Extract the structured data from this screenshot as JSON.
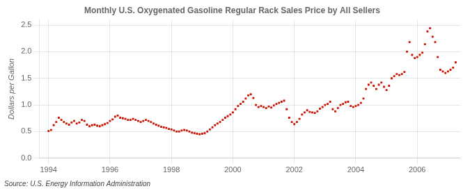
{
  "chart_data": {
    "type": "scatter",
    "title": "Monthly U.S. Oxygenated Gasoline Regular Rack Sales Price by All Sellers",
    "ylabel": "Dollars per Gallon",
    "annotations": [
      "Source: U.S. Energy Information Administration"
    ],
    "color": "#cc1100",
    "marker": "square",
    "grid": true,
    "xlim": [
      1993.7,
      2007.4
    ],
    "xticks": [
      1994,
      1996,
      1998,
      2000,
      2002,
      2004,
      2006
    ],
    "ylim": [
      0.0,
      2.6
    ],
    "yticks": [
      {
        "value": 0.0,
        "label": "0.0"
      },
      0.5,
      {
        "value": 1.0,
        "label": "1.0"
      },
      1.5,
      {
        "value": 2.0,
        "label": "2.0"
      },
      2.5
    ],
    "x": [
      1994.0,
      1994.083,
      1994.167,
      1994.25,
      1994.333,
      1994.417,
      1994.5,
      1994.583,
      1994.667,
      1994.75,
      1994.833,
      1994.917,
      1995.0,
      1995.083,
      1995.167,
      1995.25,
      1995.333,
      1995.417,
      1995.5,
      1995.583,
      1995.667,
      1995.75,
      1995.833,
      1995.917,
      1996.0,
      1996.083,
      1996.167,
      1996.25,
      1996.333,
      1996.417,
      1996.5,
      1996.583,
      1996.667,
      1996.75,
      1996.833,
      1996.917,
      1997.0,
      1997.083,
      1997.167,
      1997.25,
      1997.333,
      1997.417,
      1997.5,
      1997.583,
      1997.667,
      1997.75,
      1997.833,
      1997.917,
      1998.0,
      1998.083,
      1998.167,
      1998.25,
      1998.333,
      1998.417,
      1998.5,
      1998.583,
      1998.667,
      1998.75,
      1998.833,
      1998.917,
      1999.0,
      1999.083,
      1999.167,
      1999.25,
      1999.333,
      1999.417,
      1999.5,
      1999.583,
      1999.667,
      1999.75,
      1999.833,
      1999.917,
      2000.0,
      2000.083,
      2000.167,
      2000.25,
      2000.333,
      2000.417,
      2000.5,
      2000.583,
      2000.667,
      2000.75,
      2000.833,
      2000.917,
      2001.0,
      2001.083,
      2001.167,
      2001.25,
      2001.333,
      2001.417,
      2001.5,
      2001.583,
      2001.667,
      2001.75,
      2001.833,
      2001.917,
      2002.0,
      2002.083,
      2002.167,
      2002.25,
      2002.333,
      2002.417,
      2002.5,
      2002.583,
      2002.667,
      2002.75,
      2002.833,
      2002.917,
      2003.0,
      2003.083,
      2003.167,
      2003.25,
      2003.333,
      2003.417,
      2003.5,
      2003.583,
      2003.667,
      2003.75,
      2003.833,
      2003.917,
      2004.0,
      2004.083,
      2004.167,
      2004.25,
      2004.333,
      2004.417,
      2004.5,
      2004.583,
      2004.667,
      2004.75,
      2004.833,
      2004.917,
      2005.0,
      2005.083,
      2005.167,
      2005.25,
      2005.333,
      2005.417,
      2005.5,
      2005.583,
      2005.667,
      2005.75,
      2005.833,
      2005.917,
      2006.0,
      2006.083,
      2006.167,
      2006.25,
      2006.333,
      2006.417,
      2006.5,
      2006.583,
      2006.667,
      2006.75,
      2006.833,
      2006.917,
      2007.0,
      2007.083,
      2007.167,
      2007.25
    ],
    "values": [
      0.51,
      0.53,
      0.62,
      0.68,
      0.76,
      0.72,
      0.68,
      0.65,
      0.63,
      0.67,
      0.7,
      0.65,
      0.67,
      0.72,
      0.7,
      0.63,
      0.6,
      0.62,
      0.63,
      0.61,
      0.6,
      0.62,
      0.64,
      0.66,
      0.7,
      0.73,
      0.78,
      0.8,
      0.76,
      0.75,
      0.74,
      0.72,
      0.72,
      0.74,
      0.72,
      0.7,
      0.68,
      0.7,
      0.72,
      0.7,
      0.68,
      0.65,
      0.63,
      0.61,
      0.59,
      0.58,
      0.57,
      0.55,
      0.54,
      0.52,
      0.5,
      0.5,
      0.52,
      0.53,
      0.52,
      0.5,
      0.48,
      0.47,
      0.46,
      0.45,
      0.46,
      0.47,
      0.5,
      0.54,
      0.58,
      0.62,
      0.65,
      0.68,
      0.72,
      0.76,
      0.79,
      0.82,
      0.86,
      0.92,
      0.98,
      1.02,
      1.06,
      1.12,
      1.18,
      1.2,
      1.13,
      1.0,
      0.96,
      0.98,
      0.96,
      0.94,
      0.97,
      0.95,
      0.99,
      1.02,
      1.04,
      1.06,
      1.08,
      0.92,
      0.76,
      0.68,
      0.64,
      0.68,
      0.74,
      0.82,
      0.86,
      0.9,
      0.87,
      0.86,
      0.85,
      0.88,
      0.93,
      0.96,
      1.0,
      1.02,
      1.06,
      0.92,
      0.88,
      0.94,
      1.0,
      1.02,
      1.05,
      1.06,
      0.98,
      0.96,
      0.98,
      1.0,
      1.04,
      1.12,
      1.3,
      1.38,
      1.42,
      1.36,
      1.3,
      1.38,
      1.42,
      1.34,
      1.28,
      1.36,
      1.5,
      1.54,
      1.58,
      1.56,
      1.58,
      1.62,
      2.0,
      2.18,
      1.94,
      1.88,
      1.9,
      1.94,
      1.98,
      2.14,
      2.38,
      2.44,
      2.28,
      2.18,
      1.9,
      1.66,
      1.63,
      1.6,
      1.63,
      1.66,
      1.7,
      1.8
    ]
  }
}
